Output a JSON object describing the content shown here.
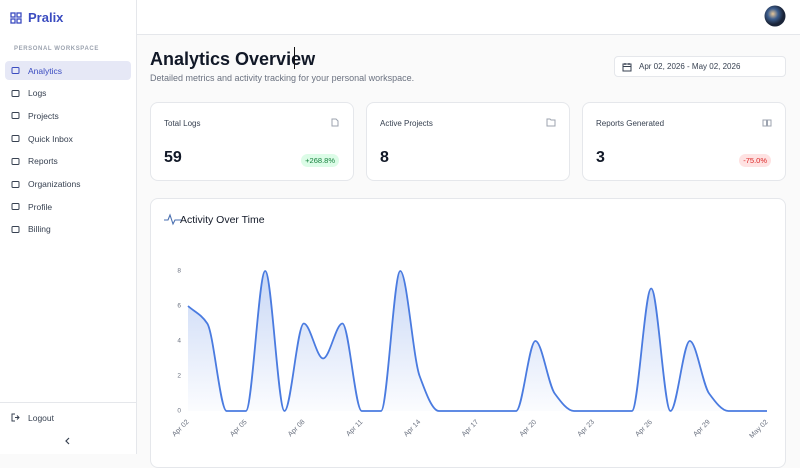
{
  "sidebar": {
    "brand": "Pralix",
    "section": "PERSONAL WORKSPACE",
    "nav": [
      "Analytics",
      "Logs",
      "Projects",
      "Quick Inbox",
      "Reports",
      "Organizations",
      "Profile",
      "Billing"
    ],
    "logout": "Logout"
  },
  "header": {
    "title": "Analytics Overview",
    "subtitle": "Detailed metrics and activity tracking for your personal workspace.",
    "date_range": "Apr 02, 2026 - May 02, 2026"
  },
  "stats": [
    {
      "label": "Total Logs",
      "value": 59,
      "change": "+268.8%"
    },
    {
      "label": "Active Projects",
      "value": 8
    },
    {
      "label": "Reports Generated",
      "value": 3,
      "change": "-75.0%"
    }
  ],
  "chart_data": {
    "type": "line",
    "title": "Activity Over Time",
    "categories": [
      "Apr 02",
      null,
      null,
      "Apr 05",
      null,
      null,
      "Apr 08",
      null,
      null,
      "Apr 11",
      null,
      null,
      "Apr 14",
      null,
      null,
      "Apr 17",
      null,
      null,
      "Apr 20",
      null,
      null,
      "Apr 23",
      null,
      null,
      "Apr 26",
      null,
      null,
      "Apr 29",
      null,
      null,
      "May 02"
    ],
    "values": [
      6,
      5,
      0,
      0,
      8,
      0,
      5,
      3,
      5,
      0,
      0,
      8,
      2,
      0,
      0,
      0,
      0,
      0,
      4,
      1,
      0,
      0,
      0,
      0,
      7,
      0,
      4,
      1,
      0,
      0,
      0
    ],
    "color": "#4a7be0",
    "ylim": [
      0,
      8
    ],
    "yticks": [
      0,
      2,
      4,
      6,
      8
    ]
  }
}
